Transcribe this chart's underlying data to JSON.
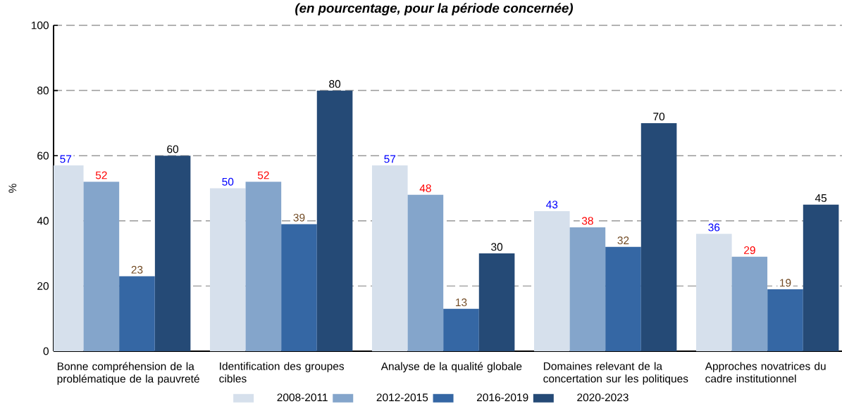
{
  "chart_data": {
    "type": "bar",
    "subtitle": "(en pourcentage, pour la période concernée)",
    "ylabel": "%",
    "categories": [
      "Bonne compréhension de la problématique de la pauvreté",
      "Identification des groupes cibles",
      "Analyse de la qualité globale",
      "Domaines relevant de la concertation sur les politiques",
      "Approches novatrices du cadre institutionnel"
    ],
    "series": [
      {
        "name": "2008-2011",
        "color": "#d6e0ec",
        "values": [
          57,
          50,
          57,
          43,
          36
        ]
      },
      {
        "name": "2012-2015",
        "color": "#84a5cb",
        "values": [
          52,
          52,
          48,
          38,
          29
        ]
      },
      {
        "name": "2016-2019",
        "color": "#3567a4",
        "values": [
          23,
          39,
          13,
          32,
          19
        ]
      },
      {
        "name": "2020-2023",
        "color": "#254a76",
        "values": [
          60,
          80,
          30,
          70,
          45
        ]
      }
    ],
    "ylim": [
      0,
      100
    ],
    "yticks": [
      0,
      20,
      40,
      60,
      80,
      100
    ],
    "grid": "y",
    "legend": "bottom",
    "data_labels": true
  }
}
